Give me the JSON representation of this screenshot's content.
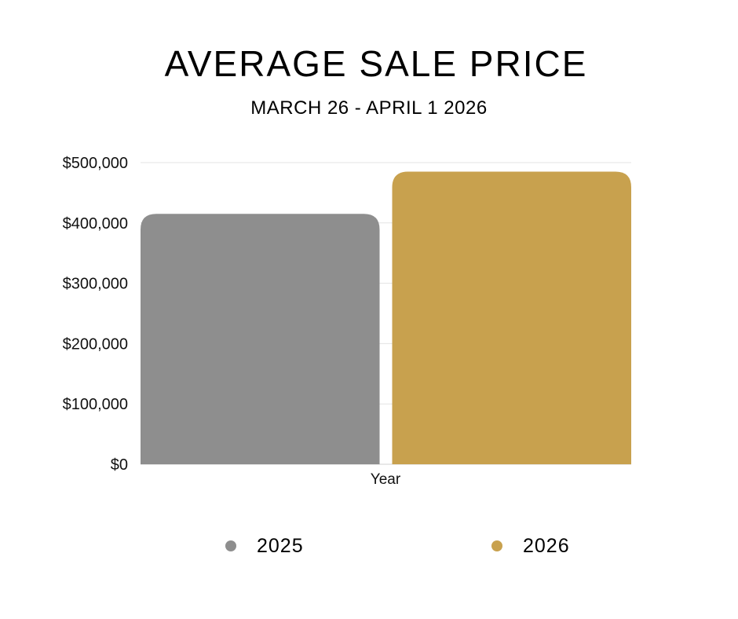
{
  "chart_data": {
    "type": "bar",
    "title": "AVERAGE SALE PRICE",
    "subtitle": "MARCH 26 - APRIL 1 2026",
    "xlabel": "Year",
    "ylabel": "",
    "categories": [
      "Year"
    ],
    "series": [
      {
        "name": "2025",
        "values": [
          415000
        ],
        "color": "#8e8e8e"
      },
      {
        "name": "2026",
        "values": [
          485000
        ],
        "color": "#c8a14e"
      }
    ],
    "ylim": [
      0,
      500000
    ],
    "yticks": [
      0,
      100000,
      200000,
      300000,
      400000,
      500000
    ],
    "ytick_labels": [
      "$0",
      "$100,000",
      "$200,000",
      "$300,000",
      "$400,000",
      "$500,000"
    ],
    "grid": true,
    "legend_position": "bottom"
  }
}
